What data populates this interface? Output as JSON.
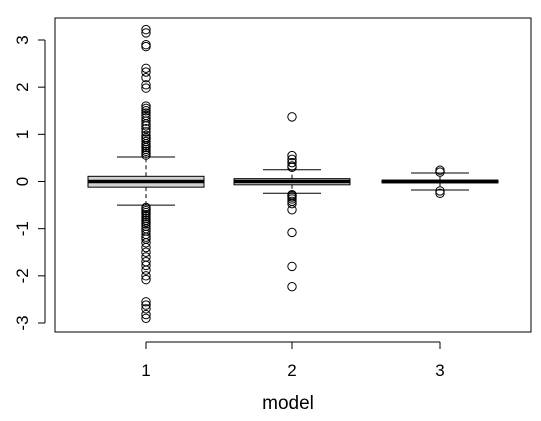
{
  "chart_data": {
    "type": "boxplot",
    "title": "",
    "xlabel": "model",
    "ylabel": "",
    "ylim": [
      -3.2,
      3.3
    ],
    "y_ticks": [
      -3,
      -2,
      -1,
      0,
      1,
      2,
      3
    ],
    "categories": [
      "1",
      "2",
      "3"
    ],
    "grid": false,
    "boxes": [
      {
        "category": "1",
        "min": -0.5,
        "q1": -0.12,
        "median": 0.0,
        "q3": 0.11,
        "max": 0.52,
        "fill": "#d3d3d3",
        "outliers": [
          3.22,
          3.15,
          2.9,
          2.86,
          2.4,
          2.32,
          2.2,
          2.05,
          1.98,
          1.6,
          1.55,
          1.5,
          1.45,
          1.4,
          1.35,
          1.28,
          1.22,
          1.18,
          1.12,
          1.05,
          0.98,
          0.93,
          0.9,
          0.85,
          0.8,
          0.76,
          0.72,
          0.68,
          0.64,
          0.6,
          0.56,
          -0.55,
          -0.58,
          -0.62,
          -0.66,
          -0.7,
          -0.74,
          -0.78,
          -0.82,
          -0.86,
          -0.9,
          -0.95,
          -1.0,
          -1.05,
          -1.12,
          -1.18,
          -1.22,
          -1.3,
          -1.4,
          -1.5,
          -1.6,
          -1.7,
          -1.78,
          -1.88,
          -2.0,
          -2.08,
          -2.55,
          -2.62,
          -2.7,
          -2.82,
          -2.9
        ]
      },
      {
        "category": "2",
        "min": -0.25,
        "q1": -0.07,
        "median": 0.0,
        "q3": 0.06,
        "max": 0.25,
        "fill": "#d3d3d3",
        "outliers": [
          1.37,
          0.55,
          0.47,
          0.4,
          0.33,
          0.3,
          -0.28,
          -0.3,
          -0.33,
          -0.37,
          -0.42,
          -0.47,
          -0.6,
          -1.08,
          -1.8,
          -2.23
        ]
      },
      {
        "category": "3",
        "min": -0.18,
        "q1": -0.03,
        "median": 0.0,
        "q3": 0.03,
        "max": 0.18,
        "fill": "#d3d3d3",
        "outliers": [
          0.24,
          0.2,
          -0.2,
          -0.25
        ]
      }
    ]
  }
}
